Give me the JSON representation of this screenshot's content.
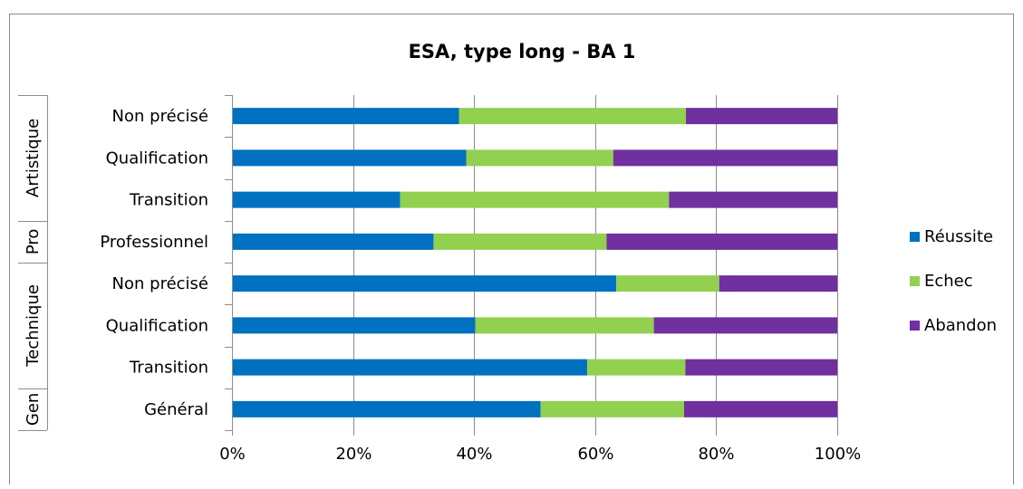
{
  "chart_data": {
    "type": "bar",
    "orientation": "horizontal",
    "stacked": "percent",
    "title": "ESA, type long - BA 1",
    "xlim": [
      0,
      100
    ],
    "x_ticks": [
      "0%",
      "20%",
      "40%",
      "60%",
      "80%",
      "100%"
    ],
    "grid": true,
    "legend_position": "right",
    "categories": [
      "Non précisé",
      "Qualification",
      "Transition",
      "Professionnel",
      "Non précisé",
      "Qualification",
      "Transition",
      "Général"
    ],
    "groups": [
      {
        "label": "Artistique",
        "start": 0,
        "count": 3
      },
      {
        "label": "Pro",
        "start": 3,
        "count": 1
      },
      {
        "label": "Technique",
        "start": 4,
        "count": 3
      },
      {
        "label": "Gen",
        "start": 7,
        "count": 1
      }
    ],
    "series": [
      {
        "name": "Réussite",
        "color": "#0070c0",
        "values": [
          37.5,
          38.7,
          27.8,
          33.3,
          63.5,
          40.2,
          58.7,
          51.0
        ]
      },
      {
        "name": "Echec",
        "color": "#92d050",
        "values": [
          37.5,
          24.3,
          44.4,
          28.6,
          17.0,
          29.5,
          16.2,
          23.7
        ]
      },
      {
        "name": "Abandon",
        "color": "#7030a0",
        "values": [
          25.0,
          37.0,
          27.8,
          38.1,
          19.5,
          30.3,
          25.1,
          25.3
        ]
      }
    ]
  }
}
